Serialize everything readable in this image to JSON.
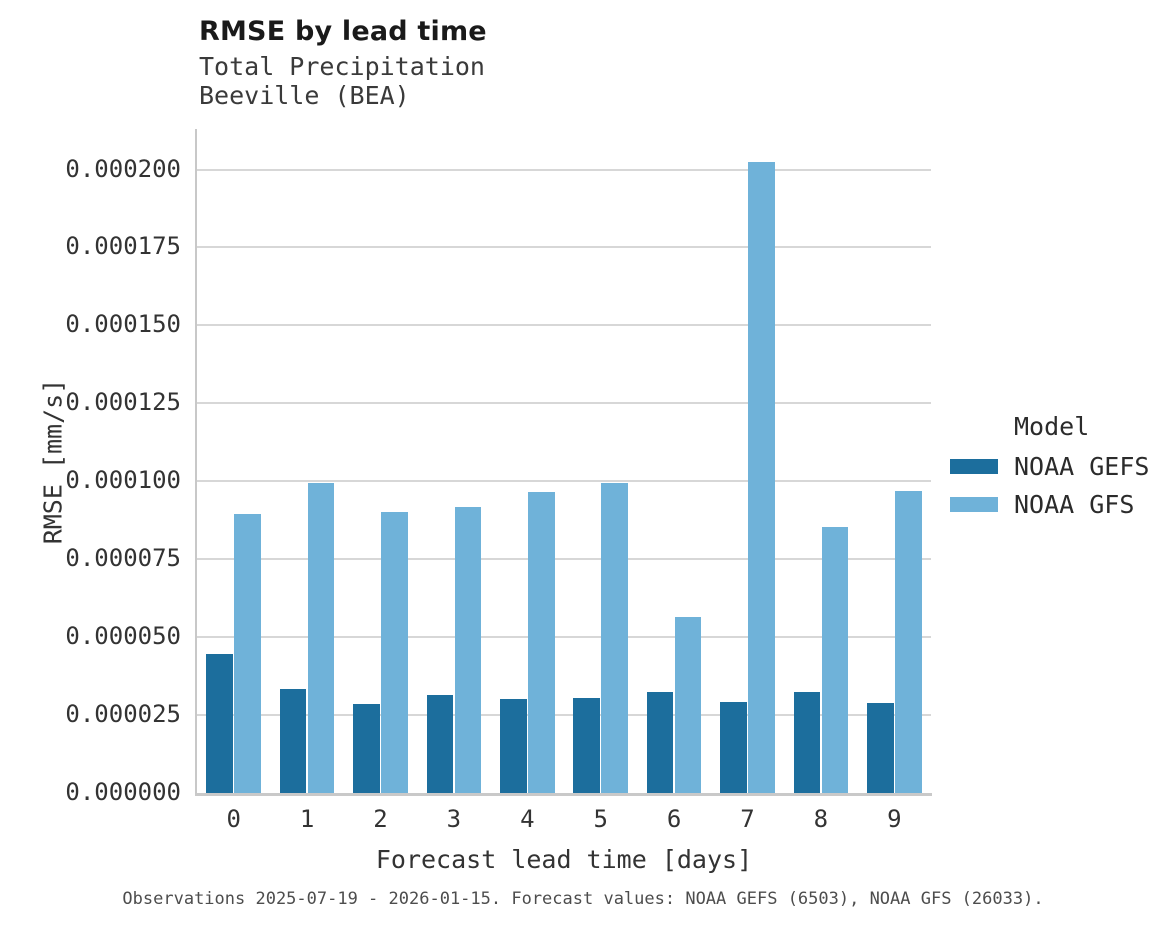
{
  "title": "RMSE by lead time",
  "subtitle_lines": [
    "Total Precipitation",
    "Beeville (BEA)"
  ],
  "legend": {
    "title": "Model",
    "entries": [
      {
        "label": "NOAA GEFS",
        "color": "#1c6e9d"
      },
      {
        "label": "NOAA GFS",
        "color": "#6fb2d9"
      }
    ]
  },
  "caption": "Observations 2025-07-19 - 2026-01-15. Forecast values: NOAA GEFS (6503), NOAA GFS (26033).",
  "chart_data": {
    "type": "bar",
    "title": "RMSE by lead time",
    "subtitle": "Total Precipitation / Beeville (BEA)",
    "xlabel": "Forecast lead time [days]",
    "ylabel": "RMSE [mm/s]",
    "categories": [
      "0",
      "1",
      "2",
      "3",
      "4",
      "5",
      "6",
      "7",
      "8",
      "9"
    ],
    "series": [
      {
        "name": "NOAA GEFS",
        "color": "#1c6e9d",
        "values": [
          4.45e-05,
          3.33e-05,
          2.86e-05,
          3.14e-05,
          3.02e-05,
          3.04e-05,
          3.23e-05,
          2.93e-05,
          3.25e-05,
          2.9e-05
        ]
      },
      {
        "name": "NOAA GFS",
        "color": "#6fb2d9",
        "values": [
          8.95e-05,
          9.94e-05,
          9.01e-05,
          9.16e-05,
          9.66e-05,
          9.96e-05,
          5.66e-05,
          0.0002023,
          8.53e-05,
          9.7e-05
        ]
      }
    ],
    "ylim": [
      0,
      0.000213
    ],
    "yticks": [
      0.0,
      2.5e-05,
      5e-05,
      7.5e-05,
      0.0001,
      0.000125,
      0.00015,
      0.000175,
      0.0002
    ],
    "ytick_decimals": 6,
    "grid": true,
    "legend_title": "Model",
    "legend_position": "right"
  }
}
